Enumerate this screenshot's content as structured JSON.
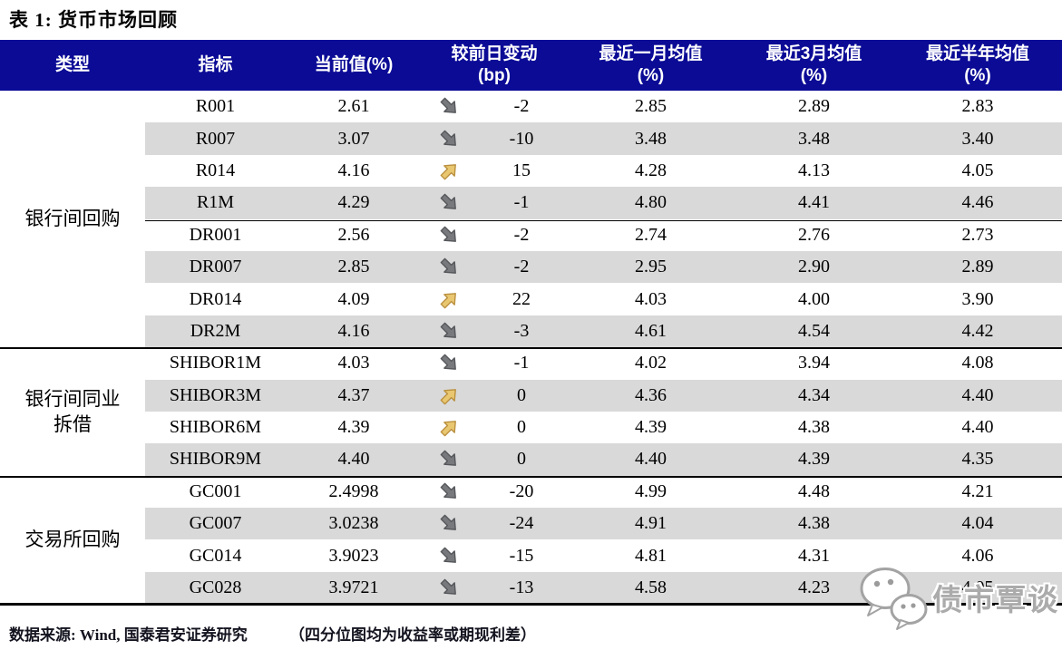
{
  "title": "表 1: 货币市场回顾",
  "colors": {
    "header_bg": "#0b0b96",
    "header_text": "#ffffff",
    "stripe": "#d9d9d9",
    "up_arrow_fill": "#e9c770",
    "up_arrow_stroke": "#b98f3e",
    "down_arrow_fill": "#77797c",
    "down_arrow_stroke": "#54565a",
    "divider": "#000000"
  },
  "chart_data": {
    "type": "table",
    "title": "表 1: 货币市场回顾",
    "columns": [
      "类型",
      "指标",
      "当前值(%)",
      "较前日变动\n(bp)",
      "最近一月均值\n(%)",
      "最近3月均值\n(%)",
      "最近半年均值\n(%)"
    ],
    "groups": [
      {
        "type_label": "银行间回购",
        "rows": [
          {
            "indicator": "R001",
            "current": "2.61",
            "direction": "down",
            "change_bp": "-2",
            "avg_1m": "2.85",
            "avg_3m": "2.89",
            "avg_6m": "2.83"
          },
          {
            "indicator": "R007",
            "current": "3.07",
            "direction": "down",
            "change_bp": "-10",
            "avg_1m": "3.48",
            "avg_3m": "3.48",
            "avg_6m": "3.40"
          },
          {
            "indicator": "R014",
            "current": "4.16",
            "direction": "up",
            "change_bp": "15",
            "avg_1m": "4.28",
            "avg_3m": "4.13",
            "avg_6m": "4.05"
          },
          {
            "indicator": "R1M",
            "current": "4.29",
            "direction": "down",
            "change_bp": "-1",
            "avg_1m": "4.80",
            "avg_3m": "4.41",
            "avg_6m": "4.46"
          },
          {
            "indicator": "DR001",
            "current": "2.56",
            "direction": "down",
            "change_bp": "-2",
            "avg_1m": "2.74",
            "avg_3m": "2.76",
            "avg_6m": "2.73"
          },
          {
            "indicator": "DR007",
            "current": "2.85",
            "direction": "down",
            "change_bp": "-2",
            "avg_1m": "2.95",
            "avg_3m": "2.90",
            "avg_6m": "2.89"
          },
          {
            "indicator": "DR014",
            "current": "4.09",
            "direction": "up",
            "change_bp": "22",
            "avg_1m": "4.03",
            "avg_3m": "4.00",
            "avg_6m": "3.90"
          },
          {
            "indicator": "DR2M",
            "current": "4.16",
            "direction": "down",
            "change_bp": "-3",
            "avg_1m": "4.61",
            "avg_3m": "4.54",
            "avg_6m": "4.42"
          }
        ]
      },
      {
        "type_label": "银行间同业\n拆借",
        "rows": [
          {
            "indicator": "SHIBOR1M",
            "current": "4.03",
            "direction": "down",
            "change_bp": "-1",
            "avg_1m": "4.02",
            "avg_3m": "3.94",
            "avg_6m": "4.08"
          },
          {
            "indicator": "SHIBOR3M",
            "current": "4.37",
            "direction": "up",
            "change_bp": "0",
            "avg_1m": "4.36",
            "avg_3m": "4.34",
            "avg_6m": "4.40"
          },
          {
            "indicator": "SHIBOR6M",
            "current": "4.39",
            "direction": "up",
            "change_bp": "0",
            "avg_1m": "4.39",
            "avg_3m": "4.38",
            "avg_6m": "4.40"
          },
          {
            "indicator": "SHIBOR9M",
            "current": "4.40",
            "direction": "down",
            "change_bp": "0",
            "avg_1m": "4.40",
            "avg_3m": "4.39",
            "avg_6m": "4.35"
          }
        ]
      },
      {
        "type_label": "交易所回购",
        "rows": [
          {
            "indicator": "GC001",
            "current": "2.4998",
            "direction": "down",
            "change_bp": "-20",
            "avg_1m": "4.99",
            "avg_3m": "4.48",
            "avg_6m": "4.21"
          },
          {
            "indicator": "GC007",
            "current": "3.0238",
            "direction": "down",
            "change_bp": "-24",
            "avg_1m": "4.91",
            "avg_3m": "4.38",
            "avg_6m": "4.04"
          },
          {
            "indicator": "GC014",
            "current": "3.9023",
            "direction": "down",
            "change_bp": "-15",
            "avg_1m": "4.81",
            "avg_3m": "4.31",
            "avg_6m": "4.06"
          },
          {
            "indicator": "GC028",
            "current": "3.9721",
            "direction": "down",
            "change_bp": "-13",
            "avg_1m": "4.58",
            "avg_3m": "4.23",
            "avg_6m": "4.05"
          }
        ]
      }
    ]
  },
  "footer": {
    "source": "数据来源: Wind, 国泰君安证券研究",
    "note": "（四分位图均为收益率或期现利差）"
  },
  "watermark": {
    "icon": "wechat-icon",
    "text": "债市覃谈"
  }
}
